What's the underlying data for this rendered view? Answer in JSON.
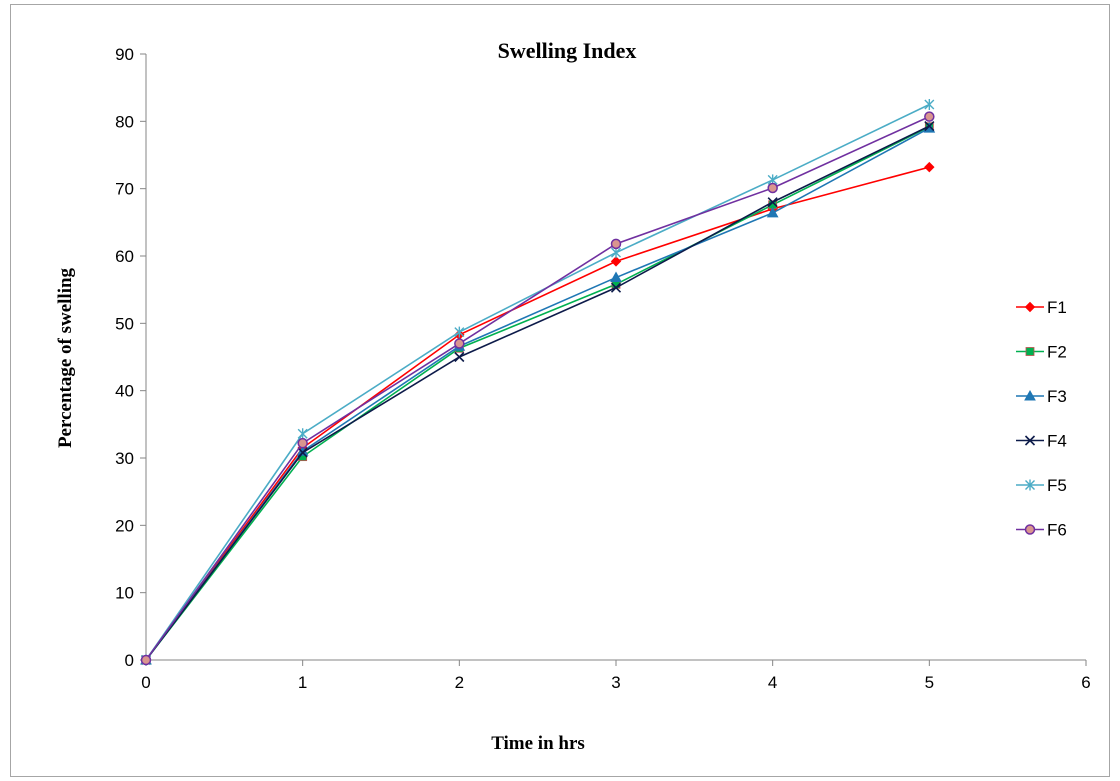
{
  "chart_data": {
    "type": "line",
    "title": "Swelling Index",
    "xlabel": "Time in hrs",
    "ylabel": "Percentage of swelling",
    "xlim": [
      0,
      6
    ],
    "ylim": [
      0,
      90
    ],
    "xticks": [
      0,
      1,
      2,
      3,
      4,
      5,
      6
    ],
    "yticks": [
      0,
      10,
      20,
      30,
      40,
      50,
      60,
      70,
      80,
      90
    ],
    "grid": false,
    "legend_position": "right",
    "x": [
      0,
      1,
      2,
      3,
      4,
      5
    ],
    "series": [
      {
        "name": "F1",
        "color": "#ff0000",
        "marker": "diamond",
        "values": [
          0,
          31.5,
          48.3,
          59.2,
          67.0,
          73.2
        ]
      },
      {
        "name": "F2",
        "color": "#00b050",
        "marker": "square",
        "values": [
          0,
          30.2,
          46.3,
          55.8,
          67.6,
          79.2
        ]
      },
      {
        "name": "F3",
        "color": "#1f77b4",
        "marker": "triangle",
        "values": [
          0,
          31.0,
          46.6,
          56.8,
          66.4,
          79.0
        ]
      },
      {
        "name": "F4",
        "color": "#0d1b4a",
        "marker": "x",
        "values": [
          0,
          30.8,
          45.0,
          55.3,
          68.0,
          79.3
        ]
      },
      {
        "name": "F5",
        "color": "#4bacc6",
        "marker": "star",
        "values": [
          0,
          33.6,
          48.7,
          60.5,
          71.3,
          82.5
        ]
      },
      {
        "name": "F6",
        "color": "#7030a0",
        "marker": "circle",
        "values": [
          0,
          32.2,
          47.0,
          61.8,
          70.1,
          80.7
        ]
      }
    ]
  }
}
